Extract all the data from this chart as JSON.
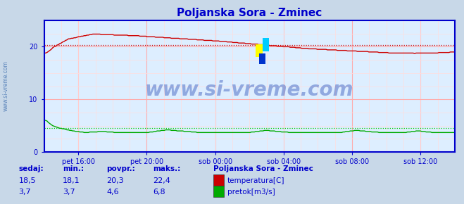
{
  "title": "Poljanska Sora - Zminec",
  "title_color": "#0000cc",
  "fig_bg_color": "#c8d8e8",
  "plot_bg_color": "#ddeeff",
  "x_tick_labels": [
    "pet 16:00",
    "pet 20:00",
    "sob 00:00",
    "sob 04:00",
    "sob 08:00",
    "sob 12:00"
  ],
  "x_tick_positions": [
    0.0833,
    0.25,
    0.4167,
    0.5833,
    0.75,
    0.9167
  ],
  "y_ticks": [
    0,
    10,
    20
  ],
  "ylim": [
    0,
    25
  ],
  "grid_color_major": "#ffaaaa",
  "grid_color_minor": "#ffdddd",
  "watermark_text": "www.si-vreme.com",
  "watermark_color": "#3355bb",
  "watermark_fontsize": 20,
  "axis_color": "#0000cc",
  "tick_color": "#0000cc",
  "tick_fontsize": 7,
  "sidebar_text": "www.si-vreme.com",
  "sidebar_color": "#3366aa",
  "sidebar_fontsize": 5.5,
  "legend_title": "Poljanska Sora - Zminec",
  "legend_title_color": "#0000cc",
  "legend_entries": [
    "temperatura[C]",
    "pretok[m3/s]"
  ],
  "legend_colors": [
    "#cc0000",
    "#00aa00"
  ],
  "stats_labels": [
    "sedaj:",
    "min.:",
    "povpr.:",
    "maks.:"
  ],
  "stats_color": "#0000cc",
  "stats_fontsize": 8,
  "stats_header_fontsize": 7.5,
  "stats_temp": [
    "18,5",
    "18,1",
    "20,3",
    "22,4"
  ],
  "stats_flow": [
    "3,7",
    "3,7",
    "4,6",
    "6,8"
  ],
  "temp_avg": 20.3,
  "flow_avg": 4.6,
  "temp_line_color": "#cc0000",
  "flow_line_color": "#00aa00",
  "temp_avg_color": "#cc0000",
  "flow_avg_color": "#00cc00",
  "spine_color": "#0000cc",
  "spine_lw": 1.5,
  "bottom_bg_color": "#c8d8e8"
}
